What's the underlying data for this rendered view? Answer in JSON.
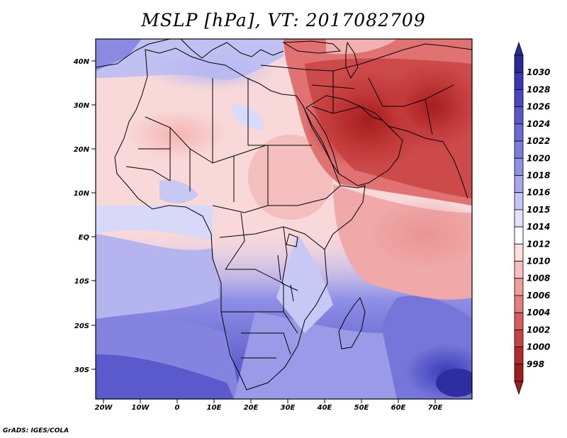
{
  "title": "MSLP [hPa], VT: 2017082709",
  "footer": "GrADS: IGES/COLA",
  "map": {
    "variable": "MSLP",
    "units": "hPa",
    "valid_time": "2017082709",
    "lon_range": [
      -22,
      80
    ],
    "lat_range": [
      -37,
      45
    ],
    "lat_labels": [
      "40N",
      "30N",
      "20N",
      "10N",
      "EQ",
      "10S",
      "20S",
      "30S"
    ],
    "lon_labels": [
      "20W",
      "10W",
      "0",
      "10E",
      "20E",
      "30E",
      "40E",
      "50E",
      "60E",
      "70E"
    ]
  },
  "colorbar": {
    "levels": [
      "1030",
      "1028",
      "1026",
      "1024",
      "1022",
      "1020",
      "1018",
      "1016",
      "1015",
      "1014",
      "1012",
      "1010",
      "1008",
      "1006",
      "1004",
      "1002",
      "1000",
      "998"
    ],
    "colors": [
      "#2a2a96",
      "#3838b4",
      "#4848c2",
      "#5858cc",
      "#6a6ad6",
      "#7c7cde",
      "#9090e6",
      "#a8a8ee",
      "#c4c4f6",
      "#e2e2fc",
      "#ffffff",
      "#fbdede",
      "#f6c0c0",
      "#ef9e9e",
      "#e57e7e",
      "#d85e5e",
      "#c84242",
      "#b42a2a",
      "#9c1e1e"
    ]
  }
}
